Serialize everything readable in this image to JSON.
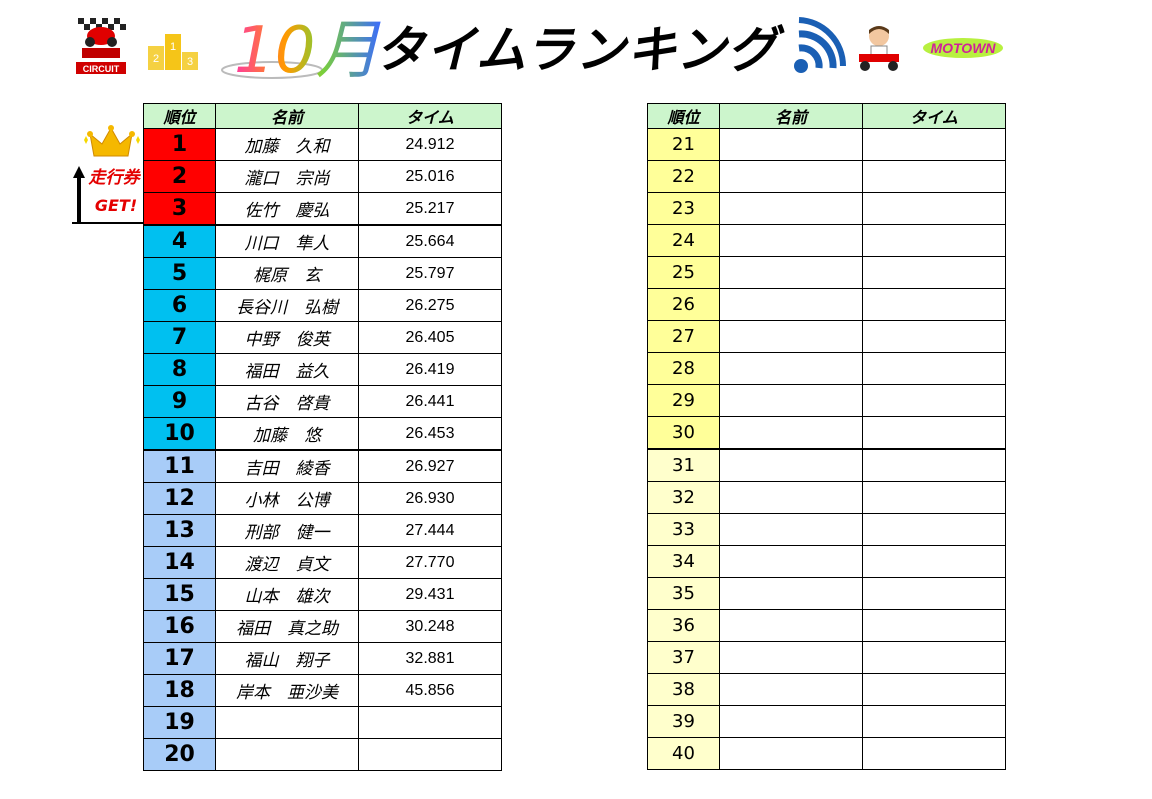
{
  "header": {
    "title": "タイムランキング",
    "month": "10月"
  },
  "badge": {
    "line1": "走行券",
    "line2": "GET!"
  },
  "columns": {
    "rank": "順位",
    "name": "名前",
    "time": "タイム"
  },
  "ranking_left": [
    {
      "rank": "1",
      "name": "加藤　久和",
      "time": "24.912"
    },
    {
      "rank": "2",
      "name": "瀧口　宗尚",
      "time": "25.016"
    },
    {
      "rank": "3",
      "name": "佐竹　慶弘",
      "time": "25.217"
    },
    {
      "rank": "4",
      "name": "川口　隼人",
      "time": "25.664"
    },
    {
      "rank": "5",
      "name": "梶原　玄",
      "time": "25.797"
    },
    {
      "rank": "6",
      "name": "長谷川　弘樹",
      "time": "26.275"
    },
    {
      "rank": "7",
      "name": "中野　俊英",
      "time": "26.405"
    },
    {
      "rank": "8",
      "name": "福田　益久",
      "time": "26.419"
    },
    {
      "rank": "9",
      "name": "古谷　啓貴",
      "time": "26.441"
    },
    {
      "rank": "10",
      "name": "加藤　悠",
      "time": "26.453"
    },
    {
      "rank": "11",
      "name": "吉田　綾香",
      "time": "26.927"
    },
    {
      "rank": "12",
      "name": "小林　公博",
      "time": "26.930"
    },
    {
      "rank": "13",
      "name": "刑部　健一",
      "time": "27.444"
    },
    {
      "rank": "14",
      "name": "渡辺　貞文",
      "time": "27.770"
    },
    {
      "rank": "15",
      "name": "山本　雄次",
      "time": "29.431"
    },
    {
      "rank": "16",
      "name": "福田　真之助",
      "time": "30.248"
    },
    {
      "rank": "17",
      "name": "福山　翔子",
      "time": "32.881"
    },
    {
      "rank": "18",
      "name": "岸本　亜沙美",
      "time": "45.856"
    },
    {
      "rank": "19",
      "name": "",
      "time": ""
    },
    {
      "rank": "20",
      "name": "",
      "time": ""
    }
  ],
  "ranking_right": [
    {
      "rank": "21",
      "name": "",
      "time": ""
    },
    {
      "rank": "22",
      "name": "",
      "time": ""
    },
    {
      "rank": "23",
      "name": "",
      "time": ""
    },
    {
      "rank": "24",
      "name": "",
      "time": ""
    },
    {
      "rank": "25",
      "name": "",
      "time": ""
    },
    {
      "rank": "26",
      "name": "",
      "time": ""
    },
    {
      "rank": "27",
      "name": "",
      "time": ""
    },
    {
      "rank": "28",
      "name": "",
      "time": ""
    },
    {
      "rank": "29",
      "name": "",
      "time": ""
    },
    {
      "rank": "30",
      "name": "",
      "time": ""
    },
    {
      "rank": "31",
      "name": "",
      "time": ""
    },
    {
      "rank": "32",
      "name": "",
      "time": ""
    },
    {
      "rank": "33",
      "name": "",
      "time": ""
    },
    {
      "rank": "34",
      "name": "",
      "time": ""
    },
    {
      "rank": "35",
      "name": "",
      "time": ""
    },
    {
      "rank": "36",
      "name": "",
      "time": ""
    },
    {
      "rank": "37",
      "name": "",
      "time": ""
    },
    {
      "rank": "38",
      "name": "",
      "time": ""
    },
    {
      "rank": "39",
      "name": "",
      "time": ""
    },
    {
      "rank": "40",
      "name": "",
      "time": ""
    }
  ],
  "logos": {
    "circuit": "CIRCUIT",
    "motown": "MOTOWN"
  },
  "colors": {
    "header_bg": "#ccf5cc",
    "rank_top3": "#ff0000",
    "rank_4_10": "#00c0f0",
    "rank_11_20": "#a8ccf8",
    "rank_21_30": "#ffff99",
    "rank_31_40": "#ffffcc"
  }
}
